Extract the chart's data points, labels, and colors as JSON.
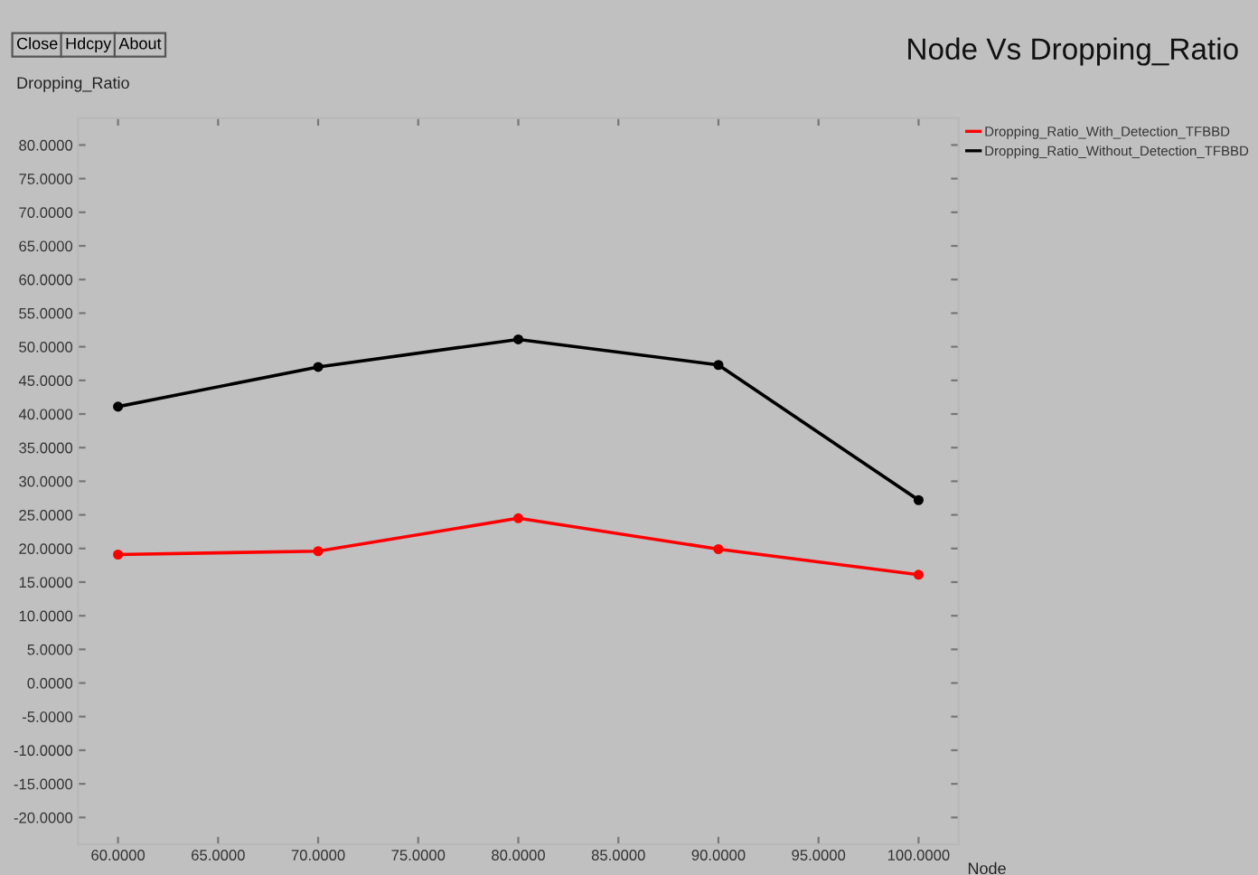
{
  "chart_data": {
    "type": "line",
    "title": "Node Vs Dropping_Ratio",
    "xlabel": "Node",
    "ylabel": "Dropping_Ratio",
    "annotations": [
      "Close",
      "Hdcpy",
      "About"
    ],
    "x": [
      60,
      70,
      80,
      90,
      100
    ],
    "series": [
      {
        "name": "Dropping_Ratio_With_Detection_TFBBD",
        "color": "#ff0000",
        "values": [
          19.1,
          19.6,
          24.5,
          19.9,
          16.1
        ]
      },
      {
        "name": "Dropping_Ratio_Without_Detection_TFBBD",
        "color": "#000000",
        "values": [
          41.1,
          47.0,
          51.1,
          47.3,
          27.2
        ]
      }
    ],
    "xlim": [
      58,
      102
    ],
    "ylim": [
      -24,
      84
    ],
    "xticks": [
      {
        "value": 60,
        "label": "60.0000"
      },
      {
        "value": 65,
        "label": "65.0000"
      },
      {
        "value": 70,
        "label": "70.0000"
      },
      {
        "value": 75,
        "label": "75.0000"
      },
      {
        "value": 80,
        "label": "80.0000"
      },
      {
        "value": 85,
        "label": "85.0000"
      },
      {
        "value": 90,
        "label": "90.0000"
      },
      {
        "value": 95,
        "label": "95.0000"
      },
      {
        "value": 100,
        "label": "100.0000"
      }
    ],
    "yticks": [
      {
        "value": -20,
        "label": "-20.0000"
      },
      {
        "value": -15,
        "label": "-15.0000"
      },
      {
        "value": -10,
        "label": "-10.0000"
      },
      {
        "value": -5,
        "label": "-5.0000"
      },
      {
        "value": 0,
        "label": "0.0000"
      },
      {
        "value": 5,
        "label": "5.0000"
      },
      {
        "value": 10,
        "label": "10.0000"
      },
      {
        "value": 15,
        "label": "15.0000"
      },
      {
        "value": 20,
        "label": "20.0000"
      },
      {
        "value": 25,
        "label": "25.0000"
      },
      {
        "value": 30,
        "label": "30.0000"
      },
      {
        "value": 35,
        "label": "35.0000"
      },
      {
        "value": 40,
        "label": "40.0000"
      },
      {
        "value": 45,
        "label": "45.0000"
      },
      {
        "value": 50,
        "label": "50.0000"
      },
      {
        "value": 55,
        "label": "55.0000"
      },
      {
        "value": 60,
        "label": "60.0000"
      },
      {
        "value": 65,
        "label": "65.0000"
      },
      {
        "value": 70,
        "label": "70.0000"
      },
      {
        "value": 75,
        "label": "75.0000"
      },
      {
        "value": 80,
        "label": "80.0000"
      }
    ],
    "grid": false,
    "legend": "top right",
    "marker": "circle",
    "line_style": "solid"
  }
}
